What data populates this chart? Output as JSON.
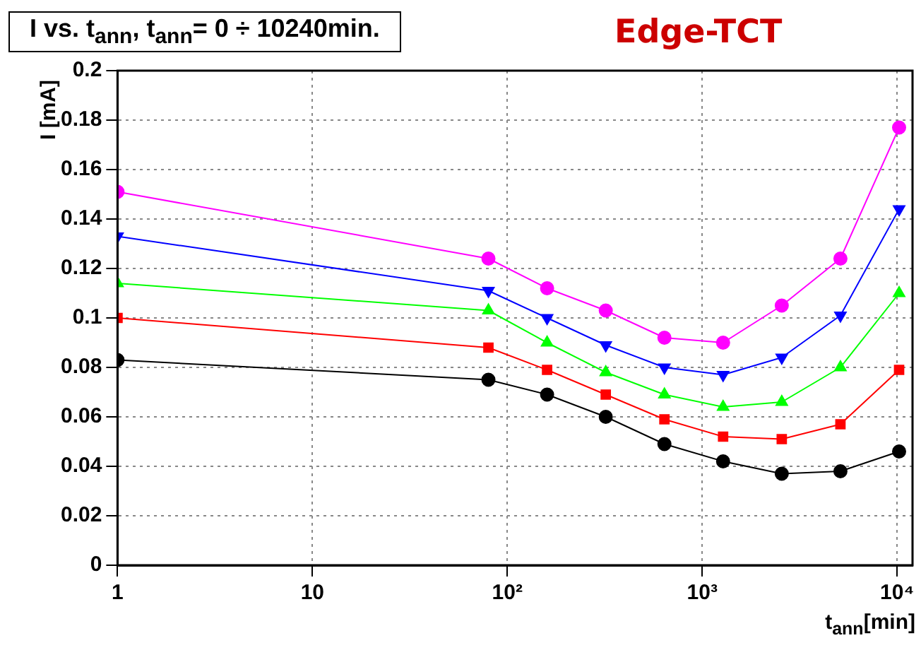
{
  "chart_data": {
    "type": "line",
    "title": "I vs. t$_{ann}$, t$_{ann}$= 0 ÷ 10240min.",
    "subtitle": "Edge-TCT",
    "xlabel": "t$_{ann}$[min]",
    "ylabel": "I [mA]",
    "x": [
      1,
      80,
      160,
      320,
      640,
      1280,
      2560,
      5120,
      10240
    ],
    "series": [
      {
        "color": "#ff00ff",
        "marker": "circle",
        "values": [
          0.151,
          0.124,
          0.112,
          0.103,
          0.092,
          0.09,
          0.105,
          0.124,
          0.177
        ]
      },
      {
        "color": "#0000ff",
        "marker": "triangle-down",
        "values": [
          0.133,
          0.111,
          0.1,
          0.089,
          0.08,
          0.077,
          0.084,
          0.101,
          0.144
        ]
      },
      {
        "color": "#00ff00",
        "marker": "triangle",
        "values": [
          0.114,
          0.103,
          0.09,
          0.078,
          0.069,
          0.064,
          0.066,
          0.08,
          0.11
        ]
      },
      {
        "color": "#ff0000",
        "marker": "square",
        "values": [
          0.1,
          0.088,
          0.079,
          0.069,
          0.059,
          0.052,
          0.051,
          0.057,
          0.079
        ]
      },
      {
        "color": "#000000",
        "marker": "circle",
        "values": [
          0.083,
          0.075,
          0.069,
          0.06,
          0.049,
          0.042,
          0.037,
          0.038,
          0.046
        ]
      }
    ],
    "log": "x",
    "xlim": [
      1,
      12000
    ],
    "xticks": [
      1,
      10,
      {
        "value": 100,
        "label": "10²"
      },
      {
        "value": 1000,
        "label": "10³"
      },
      {
        "value": 10000,
        "label": "10⁴"
      }
    ],
    "ylim": [
      0,
      0.2
    ],
    "yticks": [
      0,
      0.02,
      0.04,
      0.06,
      0.08,
      0.1,
      0.12,
      0.14,
      0.16,
      0.18,
      0.2
    ],
    "grid": true,
    "legend": false,
    "line_style": "solid"
  }
}
